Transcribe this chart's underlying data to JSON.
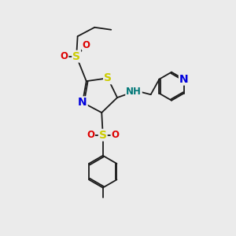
{
  "bg_color": "#ebebeb",
  "bond_color": "#1a1a1a",
  "S_color": "#cccc00",
  "N_color": "#0000dd",
  "O_color": "#dd0000",
  "NH_color": "#007777",
  "lw": 1.3,
  "lw2": 1.3,
  "fs_large": 10,
  "fs_small": 8.5,
  "figsize": [
    3.0,
    3.0
  ],
  "dpi": 100,
  "xlim": [
    0,
    10
  ],
  "ylim": [
    0,
    10
  ]
}
